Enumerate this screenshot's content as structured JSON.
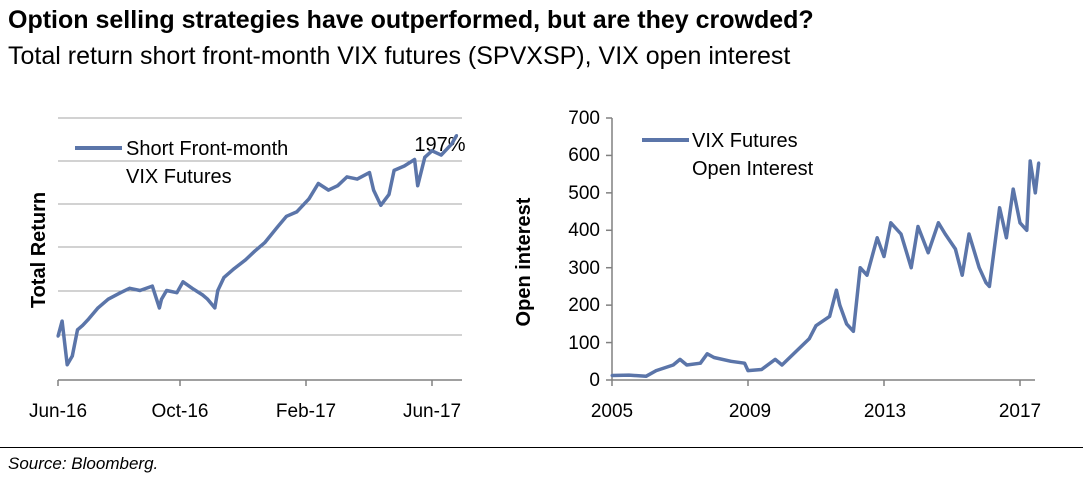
{
  "title": "Option selling strategies have outperformed, but are they crowded?",
  "subtitle": "Total return short front-month VIX futures (SPVXSP), VIX open interest",
  "source": "Source: Bloomberg.",
  "colors": {
    "series": "#5b75a9",
    "grid": "#a6a6a6",
    "axis": "#808080"
  },
  "chart_data": [
    {
      "type": "line",
      "ylabel": "Total Return",
      "xlabel": "",
      "x_ticks": [
        "Jun-16",
        "Oct-16",
        "Feb-17",
        "Jun-17"
      ],
      "grid": true,
      "legend_position": "top-left",
      "annotation": "197%",
      "series": [
        {
          "name": "Short Front-month VIX Futures",
          "x": [
            "2016-06-01",
            "2016-06-05",
            "2016-06-10",
            "2016-06-15",
            "2016-06-20",
            "2016-06-25",
            "2016-07-01",
            "2016-07-10",
            "2016-07-20",
            "2016-08-01",
            "2016-08-10",
            "2016-08-20",
            "2016-09-01",
            "2016-09-08",
            "2016-09-10",
            "2016-09-15",
            "2016-09-25",
            "2016-10-01",
            "2016-10-10",
            "2016-10-20",
            "2016-10-25",
            "2016-11-01",
            "2016-11-04",
            "2016-11-10",
            "2016-11-20",
            "2016-12-01",
            "2016-12-10",
            "2016-12-20",
            "2017-01-01",
            "2017-01-10",
            "2017-01-20",
            "2017-02-01",
            "2017-02-10",
            "2017-02-20",
            "2017-03-01",
            "2017-03-10",
            "2017-03-20",
            "2017-04-01",
            "2017-04-05",
            "2017-04-12",
            "2017-04-20",
            "2017-04-25",
            "2017-05-05",
            "2017-05-15",
            "2017-05-18",
            "2017-05-25",
            "2017-06-01",
            "2017-06-10",
            "2017-06-20",
            "2017-06-25"
          ],
          "values": [
            105,
            112,
            92,
            96,
            108,
            110,
            113,
            118,
            122,
            125,
            127,
            126,
            128,
            118,
            122,
            126,
            125,
            130,
            127,
            124,
            122,
            118,
            126,
            132,
            136,
            140,
            144,
            148,
            155,
            160,
            162,
            168,
            175,
            172,
            174,
            178,
            177,
            180,
            172,
            165,
            170,
            181,
            183,
            186,
            174,
            187,
            190,
            188,
            193,
            197
          ]
        }
      ]
    },
    {
      "type": "line",
      "ylabel": "Open interest",
      "xlabel": "",
      "x_ticks": [
        "2005",
        "2009",
        "2013",
        "2017"
      ],
      "y_ticks": [
        "0",
        "100",
        "200",
        "300",
        "400",
        "500",
        "600",
        "700"
      ],
      "ylim": [
        0,
        700
      ],
      "xlim": [
        2005,
        2017.6
      ],
      "grid": false,
      "legend_position": "top-left",
      "series": [
        {
          "name": "VIX Futures Open Interest",
          "x": [
            2005.0,
            2005.5,
            2006.0,
            2006.3,
            2006.8,
            2007.0,
            2007.2,
            2007.6,
            2007.8,
            2008.0,
            2008.5,
            2008.9,
            2009.0,
            2009.4,
            2009.8,
            2010.0,
            2010.4,
            2010.8,
            2011.0,
            2011.4,
            2011.6,
            2011.7,
            2011.9,
            2012.1,
            2012.3,
            2012.5,
            2012.8,
            2013.0,
            2013.2,
            2013.5,
            2013.8,
            2014.0,
            2014.3,
            2014.6,
            2014.8,
            2015.1,
            2015.3,
            2015.5,
            2015.8,
            2016.0,
            2016.1,
            2016.4,
            2016.6,
            2016.8,
            2017.0,
            2017.2,
            2017.3,
            2017.45,
            2017.55
          ],
          "values": [
            12,
            13,
            10,
            25,
            40,
            55,
            40,
            45,
            70,
            60,
            50,
            45,
            25,
            28,
            55,
            40,
            75,
            110,
            145,
            170,
            240,
            200,
            150,
            130,
            300,
            280,
            380,
            330,
            420,
            390,
            300,
            410,
            340,
            420,
            390,
            350,
            280,
            390,
            300,
            260,
            250,
            460,
            380,
            510,
            420,
            400,
            585,
            500,
            580
          ]
        }
      ]
    }
  ]
}
